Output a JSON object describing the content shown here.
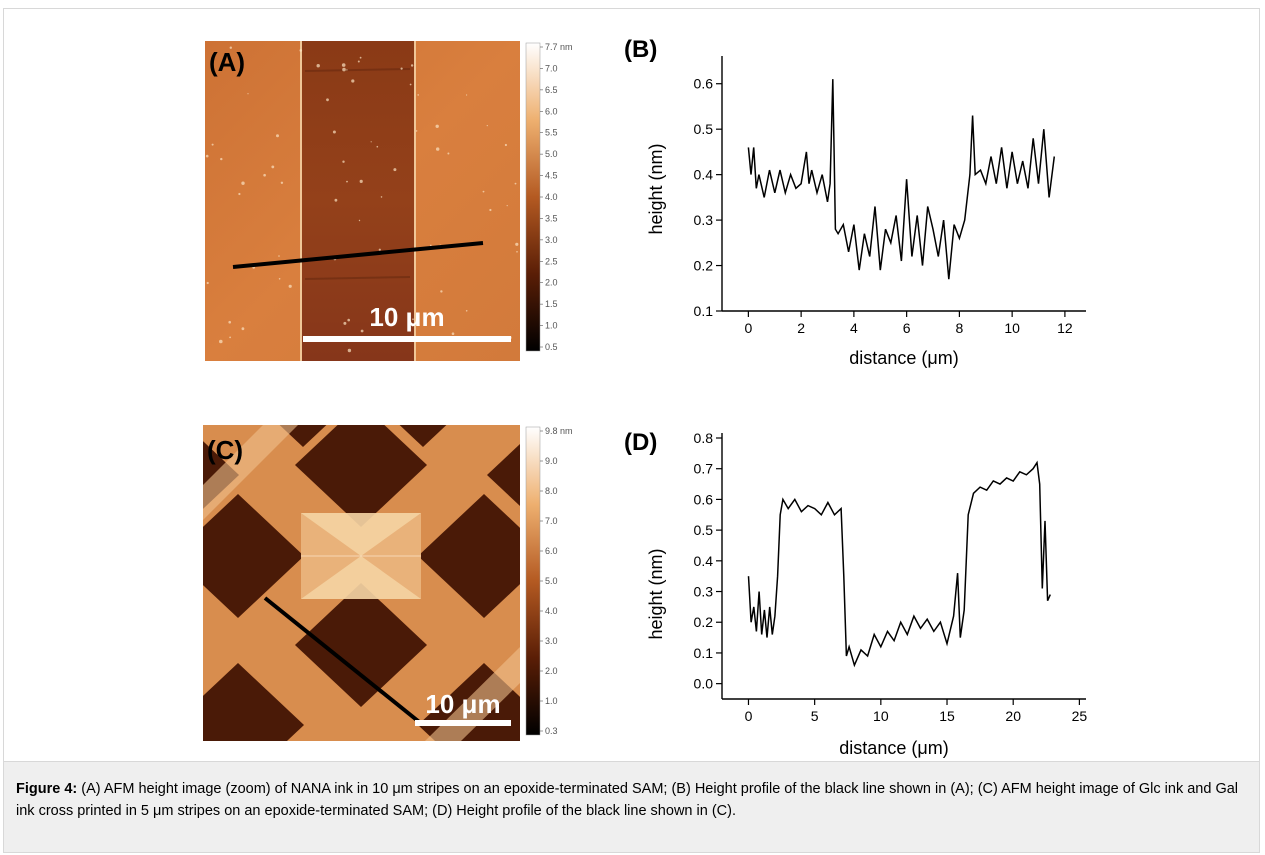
{
  "figure": {
    "panels": {
      "A": {
        "label": "(A)",
        "scalebar_text": "10 μm",
        "colorbar_ticks": [
          "7.7 nm",
          "7.0",
          "6.5",
          "6.0",
          "5.5",
          "5.0",
          "4.5",
          "4.0",
          "3.5",
          "3.0",
          "2.5",
          "2.0",
          "1.5",
          "1.0",
          "0.5"
        ],
        "colors": {
          "dark": "#4a1a06",
          "mid": "#a84a1a",
          "light": "#e8a060",
          "bright": "#ffe8c0"
        }
      },
      "B": {
        "label": "(B)",
        "chart_data": {
          "type": "line",
          "xlabel": "distance (μm)",
          "ylabel": "height (nm)",
          "xlim": [
            -1,
            12.8
          ],
          "ylim": [
            0.1,
            0.65
          ],
          "xticks": [
            0,
            2,
            4,
            6,
            8,
            10,
            12
          ],
          "yticks": [
            0.1,
            0.2,
            0.3,
            0.4,
            0.5,
            0.6
          ],
          "series": [
            {
              "x": [
                0,
                0.1,
                0.2,
                0.3,
                0.4,
                0.6,
                0.8,
                1.0,
                1.2,
                1.4,
                1.6,
                1.8,
                2.0,
                2.2,
                2.3,
                2.4,
                2.6,
                2.8,
                3.0,
                3.1,
                3.2,
                3.25,
                3.3,
                3.4,
                3.6,
                3.8,
                4.0,
                4.2,
                4.4,
                4.6,
                4.8,
                5.0,
                5.2,
                5.4,
                5.6,
                5.8,
                6.0,
                6.2,
                6.4,
                6.6,
                6.8,
                7.0,
                7.2,
                7.4,
                7.6,
                7.8,
                8.0,
                8.2,
                8.4,
                8.5,
                8.6,
                8.8,
                9.0,
                9.2,
                9.4,
                9.6,
                9.8,
                10.0,
                10.2,
                10.4,
                10.6,
                10.8,
                11.0,
                11.2,
                11.4,
                11.6
              ],
              "y": [
                0.46,
                0.4,
                0.46,
                0.37,
                0.4,
                0.35,
                0.41,
                0.36,
                0.41,
                0.36,
                0.4,
                0.37,
                0.38,
                0.45,
                0.38,
                0.41,
                0.36,
                0.4,
                0.34,
                0.38,
                0.61,
                0.45,
                0.28,
                0.27,
                0.29,
                0.23,
                0.29,
                0.19,
                0.27,
                0.22,
                0.33,
                0.19,
                0.28,
                0.25,
                0.31,
                0.21,
                0.39,
                0.22,
                0.31,
                0.2,
                0.33,
                0.28,
                0.22,
                0.3,
                0.17,
                0.29,
                0.26,
                0.3,
                0.4,
                0.53,
                0.4,
                0.41,
                0.38,
                0.44,
                0.38,
                0.46,
                0.37,
                0.45,
                0.38,
                0.43,
                0.37,
                0.48,
                0.38,
                0.5,
                0.35,
                0.44
              ]
            }
          ]
        }
      },
      "C": {
        "label": "(C)",
        "scalebar_text": "10 μm",
        "colorbar_ticks": [
          "9.8 nm",
          "9.0",
          "8.0",
          "7.0",
          "6.0",
          "5.0",
          "4.0",
          "3.0",
          "2.0",
          "1.0",
          "0.3"
        ]
      },
      "D": {
        "label": "(D)",
        "chart_data": {
          "type": "line",
          "xlabel": "distance (μm)",
          "ylabel": "height (nm)",
          "xlim": [
            -2,
            25.5
          ],
          "ylim": [
            -0.05,
            0.8
          ],
          "xticks": [
            0,
            5,
            10,
            15,
            20,
            25
          ],
          "yticks": [
            0.0,
            0.1,
            0.2,
            0.3,
            0.4,
            0.5,
            0.6,
            0.7,
            0.8
          ],
          "series": [
            {
              "x": [
                0,
                0.2,
                0.4,
                0.6,
                0.8,
                1.0,
                1.2,
                1.4,
                1.6,
                1.8,
                2.0,
                2.2,
                2.4,
                2.6,
                3.0,
                3.5,
                4.0,
                4.5,
                5.0,
                5.5,
                6.0,
                6.5,
                7.0,
                7.2,
                7.4,
                7.6,
                8.0,
                8.5,
                9.0,
                9.5,
                10.0,
                10.5,
                11.0,
                11.5,
                12.0,
                12.5,
                13.0,
                13.5,
                14.0,
                14.5,
                15.0,
                15.5,
                15.8,
                16.0,
                16.3,
                16.6,
                17.0,
                17.5,
                18.0,
                18.5,
                19.0,
                19.5,
                20.0,
                20.5,
                21.0,
                21.5,
                21.8,
                22.0,
                22.2,
                22.4,
                22.6,
                22.8
              ],
              "y": [
                0.35,
                0.2,
                0.25,
                0.17,
                0.3,
                0.16,
                0.24,
                0.15,
                0.25,
                0.16,
                0.22,
                0.35,
                0.55,
                0.6,
                0.57,
                0.6,
                0.56,
                0.58,
                0.57,
                0.55,
                0.59,
                0.55,
                0.57,
                0.35,
                0.09,
                0.12,
                0.06,
                0.11,
                0.09,
                0.16,
                0.12,
                0.17,
                0.14,
                0.2,
                0.16,
                0.22,
                0.18,
                0.21,
                0.17,
                0.2,
                0.13,
                0.22,
                0.36,
                0.15,
                0.24,
                0.55,
                0.62,
                0.64,
                0.63,
                0.66,
                0.65,
                0.67,
                0.66,
                0.69,
                0.68,
                0.7,
                0.72,
                0.65,
                0.31,
                0.53,
                0.27,
                0.29
              ]
            }
          ]
        }
      }
    }
  },
  "caption": {
    "label": "Figure 4:",
    "text": " (A) AFM height image (zoom) of NANA ink in 10 μm stripes on an epoxide-terminated SAM; (B) Height profile of the black line shown in (A); (C) AFM height image of Glc ink and Gal ink cross printed in 5 μm stripes on an epoxide-terminated SAM; (D) Height profile of the black line shown in (C)."
  }
}
